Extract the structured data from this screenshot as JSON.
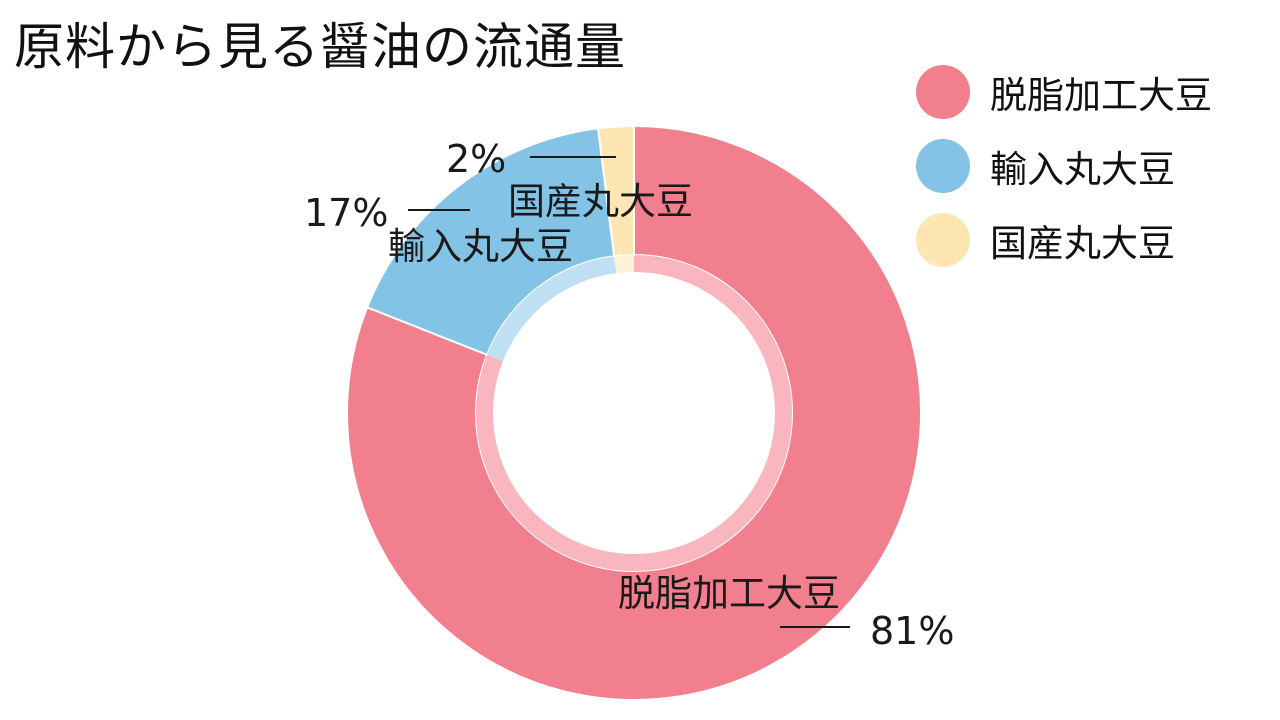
{
  "chart_data": {
    "type": "pie",
    "title": "原料から見る醤油の流通量",
    "categories": [
      "脱脂加工大豆",
      "輸入丸大豆",
      "国産丸大豆"
    ],
    "values": [
      81,
      17,
      2
    ],
    "value_labels": [
      "81%",
      "17%",
      "2%"
    ],
    "colors": [
      "#f27f8e",
      "#82c3e6",
      "#fde6b2"
    ],
    "inner_ring_colors": [
      "#f9b6be",
      "#bfe0f2",
      "#fef3d6"
    ],
    "legend": {
      "position": "top-right",
      "entries": [
        "脱脂加工大豆",
        "輸入丸大豆",
        "国産丸大豆"
      ]
    },
    "donut": true
  }
}
